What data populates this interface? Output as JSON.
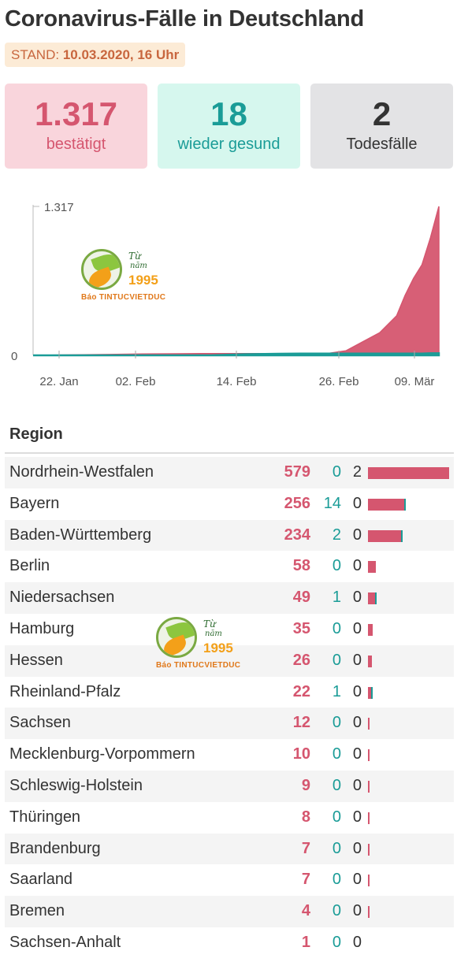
{
  "header": {
    "title": "Coronavirus-Fälle in Deutschland",
    "stand_label": "STAND:",
    "stand_value": "10.03.2020, 16 Uhr"
  },
  "stats": [
    {
      "value": "1.317",
      "label": "bestätigt"
    },
    {
      "value": "18",
      "label": "wieder gesund"
    },
    {
      "value": "2",
      "label": "Todesfälle"
    }
  ],
  "colors": {
    "confirmed": "#d5566f",
    "recovered": "#1a9c97",
    "deaths": "#333333"
  },
  "watermark": {
    "line1": "Từ",
    "line2": "năm",
    "year": "1995",
    "brand": "Báo TINTUCVIETDUC"
  },
  "chart_data": [
    {
      "type": "area",
      "title": "",
      "xlabel": "",
      "ylabel": "",
      "y_tick_labels": [
        "0",
        "1.317"
      ],
      "x_tick_labels": [
        "22. Jan",
        "02. Feb",
        "14. Feb",
        "26. Feb",
        "09. Mär"
      ],
      "ylim": [
        0,
        1317
      ],
      "x": [
        "2020-01-22",
        "2020-01-27",
        "2020-01-31",
        "2020-02-04",
        "2020-02-08",
        "2020-02-12",
        "2020-02-16",
        "2020-02-20",
        "2020-02-24",
        "2020-02-26",
        "2020-02-28",
        "2020-03-01",
        "2020-03-03",
        "2020-03-05",
        "2020-03-06",
        "2020-03-07",
        "2020-03-08",
        "2020-03-09",
        "2020-03-10"
      ],
      "series": [
        {
          "name": "",
          "values": [
            0,
            4,
            8,
            12,
            14,
            16,
            16,
            16,
            16,
            18,
            40,
            120,
            200,
            350,
            530,
            680,
            800,
            1040,
            1317
          ]
        },
        {
          "name": "",
          "values": [
            0,
            0,
            0,
            0,
            0,
            0,
            10,
            14,
            16,
            16,
            16,
            16,
            16,
            16,
            16,
            16,
            16,
            18,
            18
          ]
        }
      ],
      "grid": false
    },
    {
      "type": "table",
      "column_header": "Region",
      "rows": [
        {
          "region": "Nordrhein-Westfalen",
          "confirmed": 579,
          "recovered": 0,
          "deaths": 2
        },
        {
          "region": "Bayern",
          "confirmed": 256,
          "recovered": 14,
          "deaths": 0
        },
        {
          "region": "Baden-Württemberg",
          "confirmed": 234,
          "recovered": 2,
          "deaths": 0
        },
        {
          "region": "Berlin",
          "confirmed": 58,
          "recovered": 0,
          "deaths": 0
        },
        {
          "region": "Niedersachsen",
          "confirmed": 49,
          "recovered": 1,
          "deaths": 0
        },
        {
          "region": "Hamburg",
          "confirmed": 35,
          "recovered": 0,
          "deaths": 0
        },
        {
          "region": "Hessen",
          "confirmed": 26,
          "recovered": 0,
          "deaths": 0
        },
        {
          "region": "Rheinland-Pfalz",
          "confirmed": 22,
          "recovered": 1,
          "deaths": 0
        },
        {
          "region": "Sachsen",
          "confirmed": 12,
          "recovered": 0,
          "deaths": 0
        },
        {
          "region": "Mecklenburg-Vorpommern",
          "confirmed": 10,
          "recovered": 0,
          "deaths": 0
        },
        {
          "region": "Schleswig-Holstein",
          "confirmed": 9,
          "recovered": 0,
          "deaths": 0
        },
        {
          "region": "Thüringen",
          "confirmed": 8,
          "recovered": 0,
          "deaths": 0
        },
        {
          "region": "Brandenburg",
          "confirmed": 7,
          "recovered": 0,
          "deaths": 0
        },
        {
          "region": "Saarland",
          "confirmed": 7,
          "recovered": 0,
          "deaths": 0
        },
        {
          "region": "Bremen",
          "confirmed": 4,
          "recovered": 0,
          "deaths": 0
        },
        {
          "region": "Sachsen-Anhalt",
          "confirmed": 1,
          "recovered": 0,
          "deaths": 0
        }
      ]
    }
  ]
}
